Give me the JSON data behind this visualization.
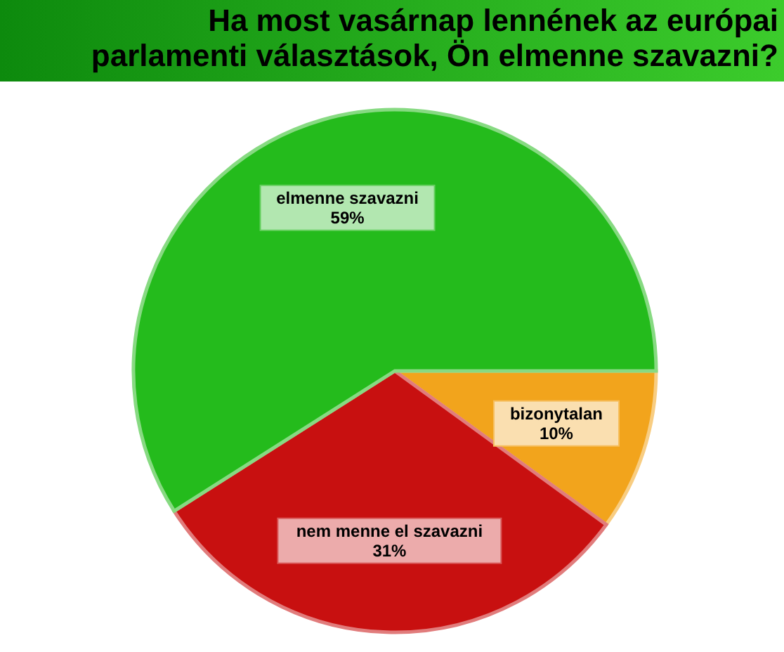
{
  "chart_data": {
    "type": "pie",
    "title": "Ha most vasárnap lennének az európai parlamenti választások, Ön elmenne szavazni?",
    "categories": [
      "bizonytalan",
      "nem menne el szavazni",
      "elmenne szavazni"
    ],
    "values": [
      10,
      31,
      59
    ],
    "colors": [
      "#f2a41c",
      "#c81010",
      "#24bb1c"
    ],
    "value_labels": [
      "10%",
      "31%",
      "59%"
    ]
  }
}
